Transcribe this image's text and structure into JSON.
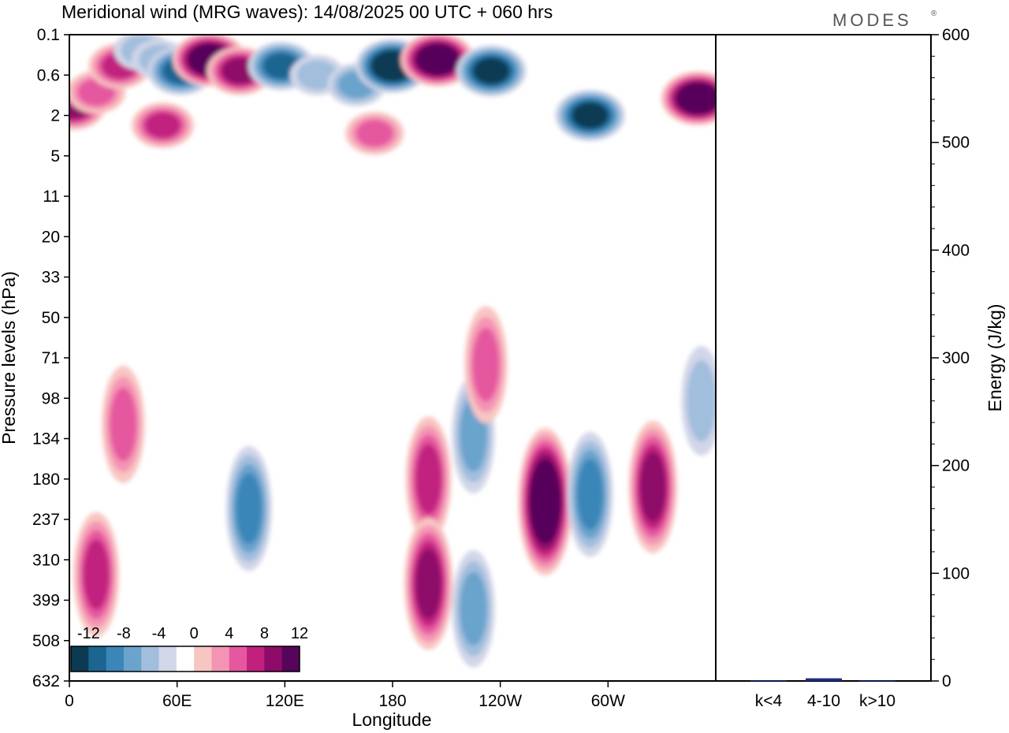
{
  "title": "Meridional wind (MRG waves):  14/08/2025  00 UTC  + 060 hrs",
  "brand": "MODES",
  "brand_mark": "®",
  "chart_data": [
    {
      "type": "heatmap",
      "title": "Meridional wind (MRG waves):  14/08/2025  00 UTC  + 060 hrs",
      "xlabel": "Longitude",
      "ylabel": "Pressure levels (hPa)",
      "x_tick_labels": [
        "0",
        "60E",
        "120E",
        "180",
        "120W",
        "60W"
      ],
      "x_tick_values_deg": [
        0,
        60,
        120,
        180,
        240,
        300
      ],
      "xlim_deg": [
        0,
        360
      ],
      "y_tick_labels": [
        "0.1",
        "0.6",
        "2",
        "5",
        "11",
        "20",
        "33",
        "50",
        "71",
        "98",
        "134",
        "180",
        "237",
        "310",
        "399",
        "508",
        "632"
      ],
      "colorbar": {
        "tick_labels": [
          "-12",
          "-8",
          "-4",
          "0",
          "4",
          "8",
          "12"
        ],
        "levels": [
          -14,
          -12,
          -10,
          -8,
          -6,
          -4,
          -2,
          2,
          4,
          6,
          8,
          10,
          12,
          14
        ],
        "colors": [
          "#0b3a52",
          "#1c6590",
          "#3a86b8",
          "#6aa3cc",
          "#a2bedd",
          "#d1d6e8",
          "#ffffff",
          "#f8c6c2",
          "#f494b4",
          "#e5589f",
          "#c1207f",
          "#8e0b69",
          "#56045c"
        ]
      },
      "features": [
        {
          "lon": 2,
          "lev": 1.5,
          "v": 10
        },
        {
          "lon": 15,
          "lev": 1.0,
          "v": 5
        },
        {
          "lon": 28,
          "lev": 0.4,
          "v": 8
        },
        {
          "lon": 40,
          "lev": 0.2,
          "v": -3
        },
        {
          "lon": 50,
          "lev": 0.3,
          "v": -4
        },
        {
          "lon": 62,
          "lev": 0.5,
          "v": -10
        },
        {
          "lon": 78,
          "lev": 0.3,
          "v": 13
        },
        {
          "lon": 95,
          "lev": 0.5,
          "v": 10
        },
        {
          "lon": 118,
          "lev": 0.4,
          "v": -10
        },
        {
          "lon": 138,
          "lev": 0.6,
          "v": -4
        },
        {
          "lon": 160,
          "lev": 0.8,
          "v": -6
        },
        {
          "lon": 180,
          "lev": 0.4,
          "v": -13
        },
        {
          "lon": 205,
          "lev": 0.3,
          "v": 13
        },
        {
          "lon": 235,
          "lev": 0.5,
          "v": -12
        },
        {
          "lon": 290,
          "lev": 2.0,
          "v": -11
        },
        {
          "lon": 350,
          "lev": 1.2,
          "v": 14
        },
        {
          "lon": 52,
          "lev": 2.5,
          "v": 7
        },
        {
          "lon": 170,
          "lev": 3.0,
          "v": 5
        },
        {
          "lon": 30,
          "lev": 120,
          "v": 5
        },
        {
          "lon": 15,
          "lev": 340,
          "v": 7
        },
        {
          "lon": 100,
          "lev": 220,
          "v": -7
        },
        {
          "lon": 200,
          "lev": 180,
          "v": 8
        },
        {
          "lon": 200,
          "lev": 360,
          "v": 10
        },
        {
          "lon": 225,
          "lev": 130,
          "v": -6
        },
        {
          "lon": 225,
          "lev": 420,
          "v": -6
        },
        {
          "lon": 232,
          "lev": 75,
          "v": 6
        },
        {
          "lon": 265,
          "lev": 210,
          "v": 13
        },
        {
          "lon": 290,
          "lev": 200,
          "v": -7
        },
        {
          "lon": 325,
          "lev": 190,
          "v": 10
        },
        {
          "lon": 352,
          "lev": 100,
          "v": -4
        }
      ]
    },
    {
      "type": "bar",
      "ylabel": "Energy (J/kg)",
      "categories": [
        "k<4",
        "4-10",
        "k>10"
      ],
      "values": [
        0.5,
        2.5,
        0.3
      ],
      "ylim": [
        0,
        600
      ],
      "y_tick_labels": [
        "0",
        "100",
        "200",
        "300",
        "400",
        "500",
        "600"
      ],
      "bar_color": "#1f2a8c"
    }
  ]
}
